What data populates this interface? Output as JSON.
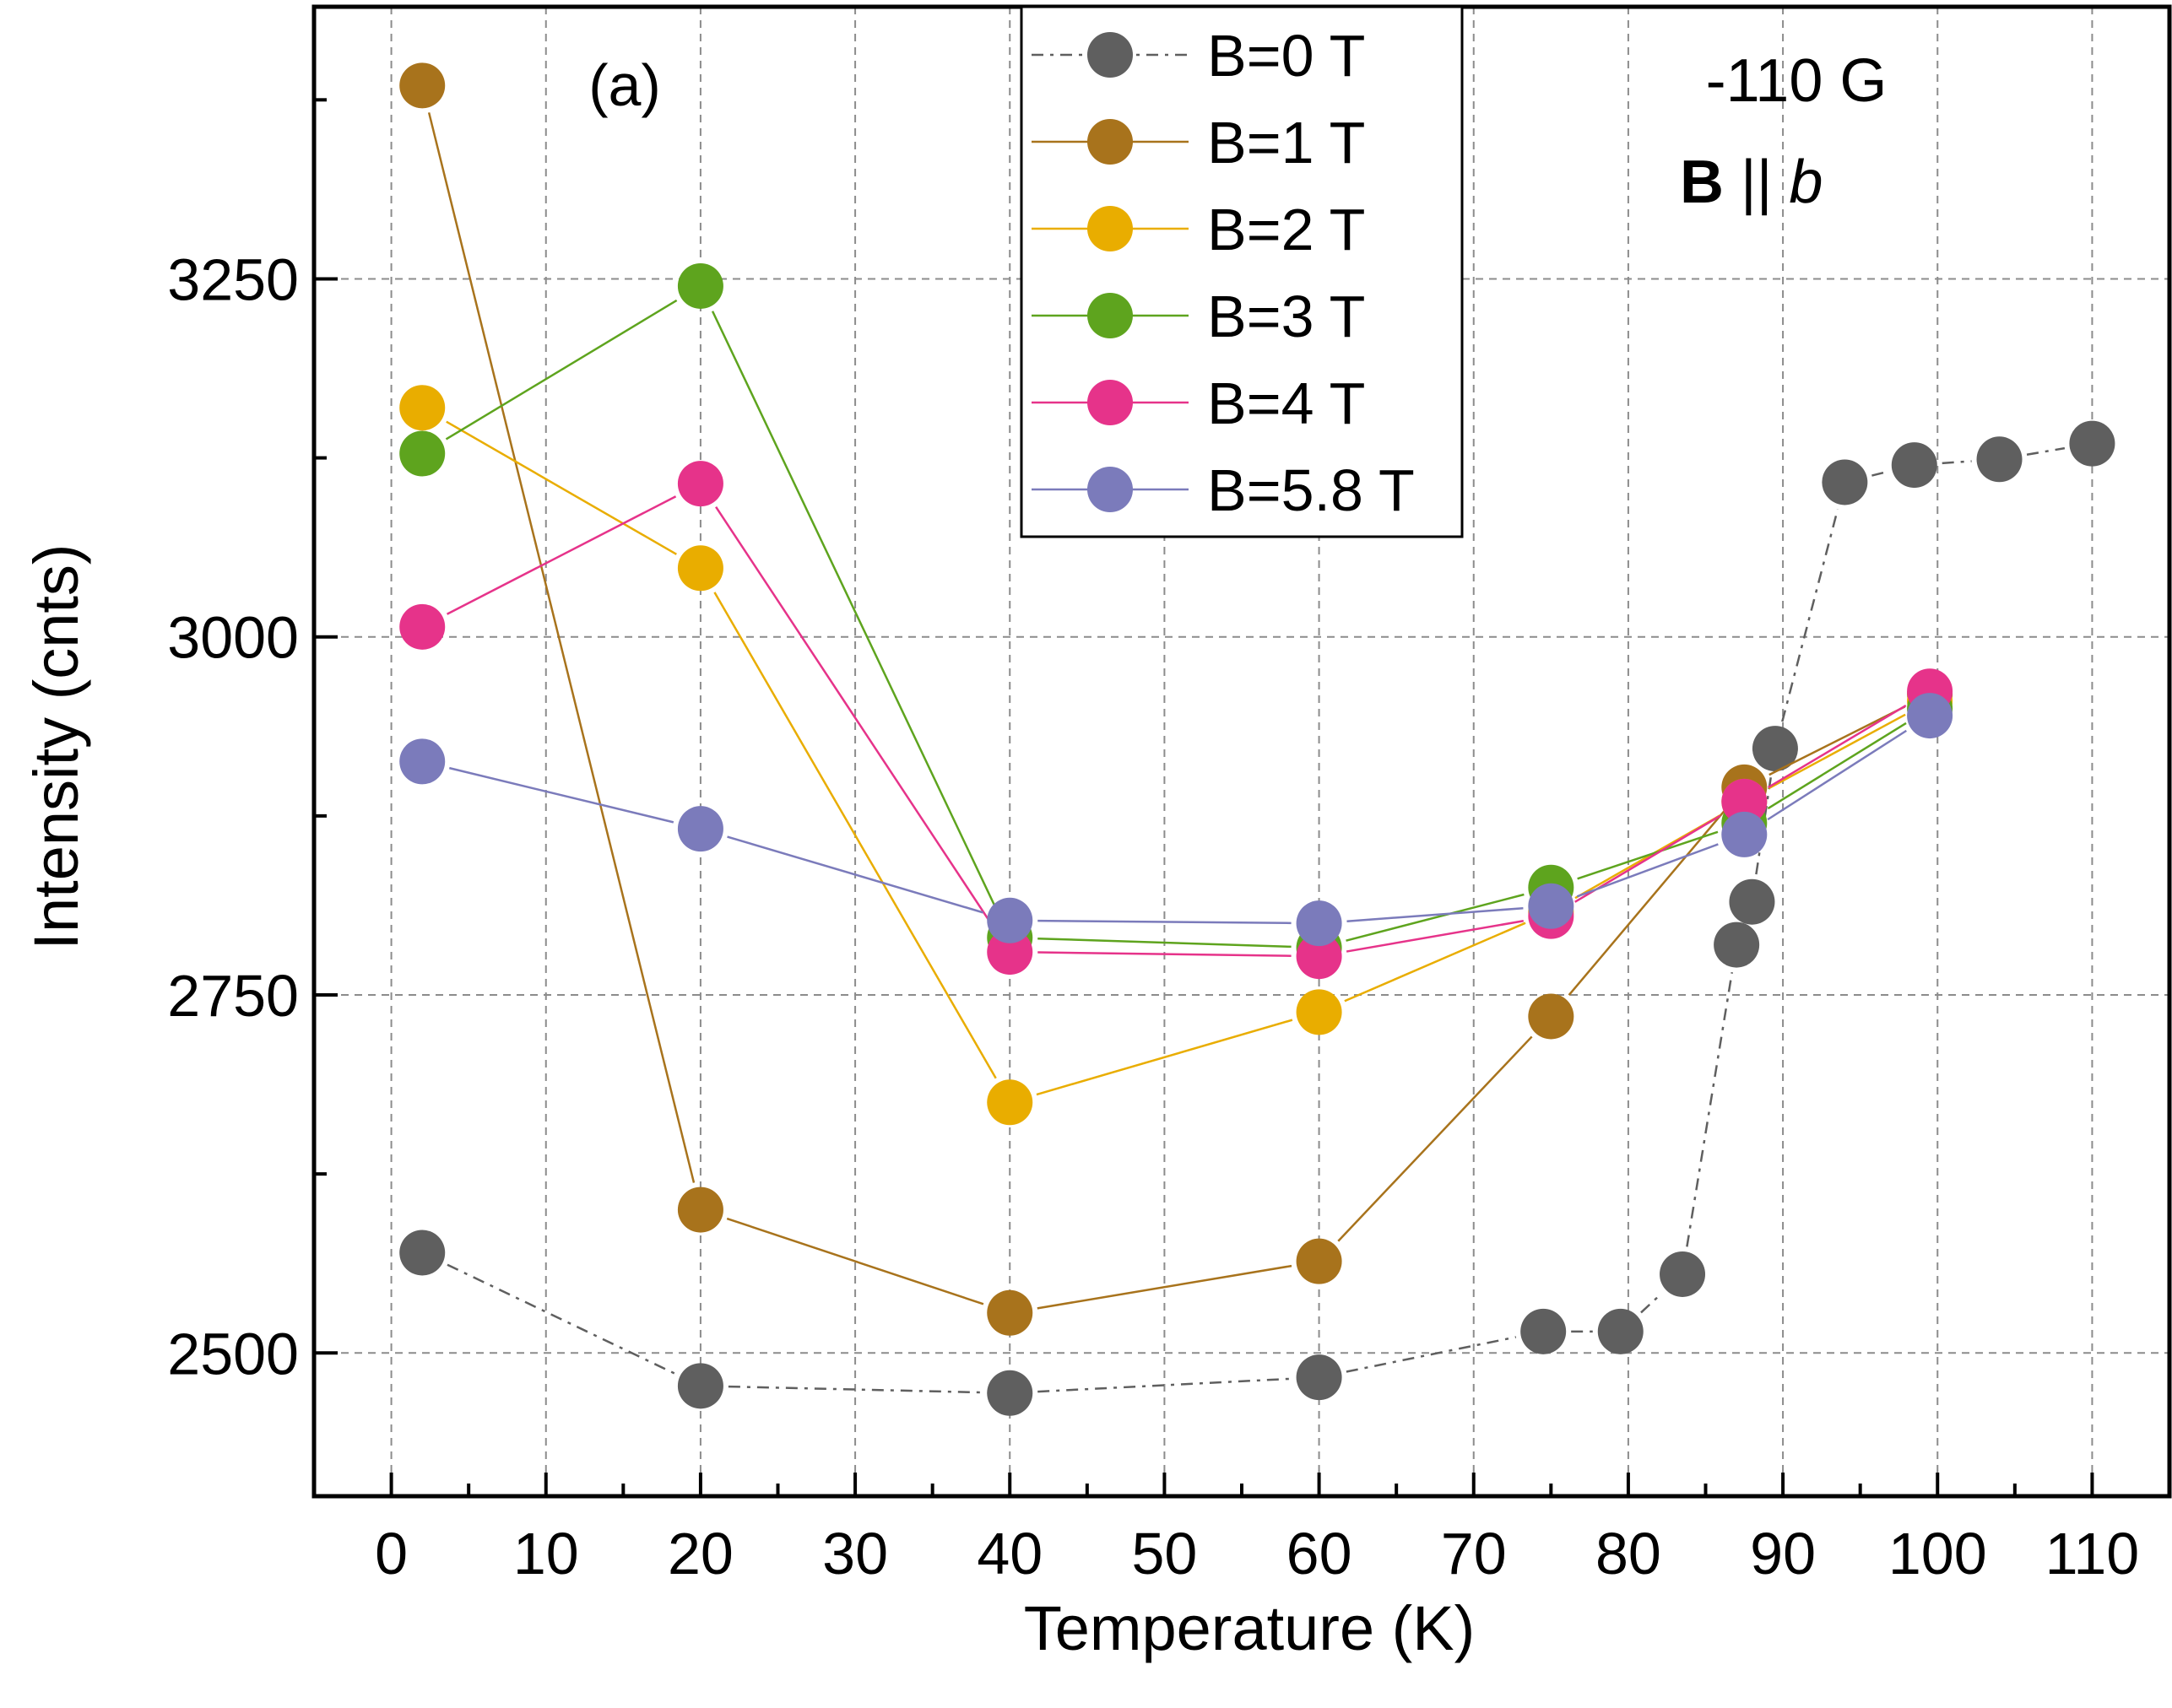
{
  "chart_data": {
    "type": "line",
    "title": "",
    "panel_label": "(a)",
    "annotation_line1": "-110 G",
    "annotation_bold": "B",
    "annotation_sep": " || ",
    "annotation_italic": "b",
    "xlabel": "Temperature (K)",
    "ylabel": "Intensity (cnts)",
    "xlim": [
      -5,
      115
    ],
    "ylim": [
      2400,
      3440
    ],
    "xticks": [
      0,
      10,
      20,
      30,
      40,
      50,
      60,
      70,
      80,
      90,
      100,
      110
    ],
    "xtick_labels": [
      "0",
      "10",
      "20",
      "30",
      "40",
      "50",
      "60",
      "70",
      "80",
      "90",
      "100",
      "110"
    ],
    "yticks": [
      2500,
      2750,
      3000,
      3250
    ],
    "ytick_labels": [
      "2500",
      "2750",
      "3000",
      "3250"
    ],
    "grid": true,
    "legend_position": "top-center",
    "series": [
      {
        "name": "B=0 T",
        "color": "#5f5f5f",
        "dashed": true,
        "x": [
          2,
          20,
          40,
          60,
          74.5,
          79.5,
          83.5,
          87,
          88,
          89.5,
          94,
          98.5,
          104,
          110
        ],
        "y": [
          2570,
          2477,
          2472,
          2483,
          2515,
          2515,
          2555,
          2785,
          2815,
          2922,
          3108,
          3120,
          3124,
          3135
        ]
      },
      {
        "name": "B=1 T",
        "color": "#a8731c",
        "dashed": false,
        "x": [
          2,
          20,
          40,
          60,
          75,
          87.5,
          99.5
        ],
        "y": [
          3385,
          2600,
          2528,
          2564,
          2735,
          2895,
          2960
        ]
      },
      {
        "name": "B=2 T",
        "color": "#e9ad00",
        "dashed": false,
        "x": [
          2,
          20,
          40,
          60,
          75,
          87.5,
          99.5
        ],
        "y": [
          3160,
          3048,
          2675,
          2738,
          2808,
          2885,
          2955
        ]
      },
      {
        "name": "B=3 T",
        "color": "#5ea41e",
        "dashed": false,
        "x": [
          2,
          20,
          40,
          60,
          75,
          87.5,
          99.5
        ],
        "y": [
          3128,
          3245,
          2790,
          2783,
          2825,
          2870,
          2950
        ]
      },
      {
        "name": "B=4 T",
        "color": "#e6338a",
        "dashed": false,
        "x": [
          2,
          20,
          40,
          60,
          75,
          87.5,
          99.5
        ],
        "y": [
          3007,
          3107,
          2780,
          2777,
          2805,
          2885,
          2962
        ]
      },
      {
        "name": "B=5.8 T",
        "color": "#7b7bbb",
        "dashed": false,
        "x": [
          2,
          20,
          40,
          60,
          75,
          87.5,
          99.5
        ],
        "y": [
          2913,
          2866,
          2802,
          2800,
          2812,
          2862,
          2945
        ]
      }
    ]
  }
}
